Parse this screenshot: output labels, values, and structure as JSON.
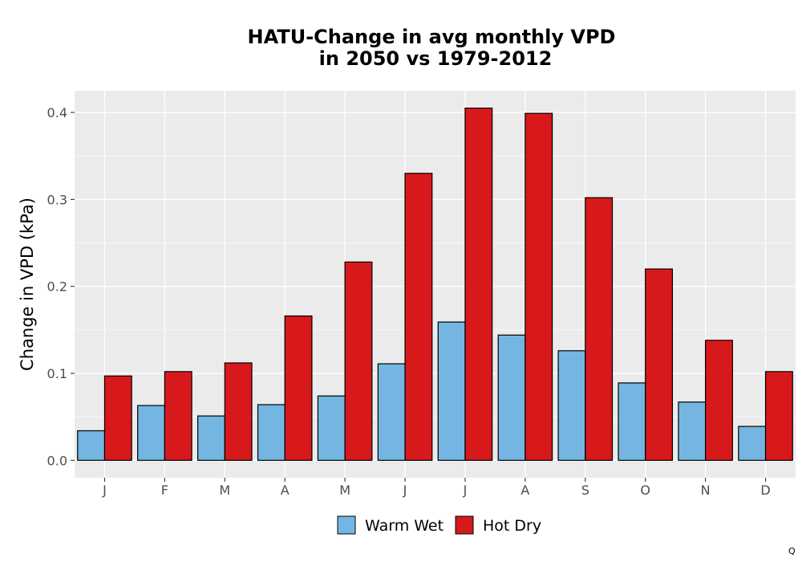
{
  "chart_data": {
    "type": "bar",
    "title_line1": "HATU-Change in avg monthly VPD",
    "title_line2": "in 2050 vs 1979-2012",
    "xlabel": "",
    "ylabel": "Change in VPD (kPa)",
    "categories": [
      "J",
      "F",
      "M",
      "A",
      "M",
      "J",
      "J",
      "A",
      "S",
      "O",
      "N",
      "D"
    ],
    "ylim": [
      -0.02,
      0.425
    ],
    "yticks": [
      0.0,
      0.1,
      0.2,
      0.3,
      0.4
    ],
    "ytick_labels": [
      "0.0",
      "0.1",
      "0.2",
      "0.3",
      "0.4"
    ],
    "grid": true,
    "legend_position": "bottom",
    "series": [
      {
        "name": "Warm Wet",
        "color": "#74b6e1",
        "values": [
          0.034,
          0.063,
          0.051,
          0.064,
          0.074,
          0.111,
          0.159,
          0.144,
          0.126,
          0.089,
          0.067,
          0.039
        ]
      },
      {
        "name": "Hot Dry",
        "color": "#d7191c",
        "values": [
          0.097,
          0.102,
          0.112,
          0.166,
          0.228,
          0.33,
          0.405,
          0.399,
          0.302,
          0.22,
          0.138,
          0.102
        ]
      }
    ]
  },
  "corner_mark": "Q"
}
